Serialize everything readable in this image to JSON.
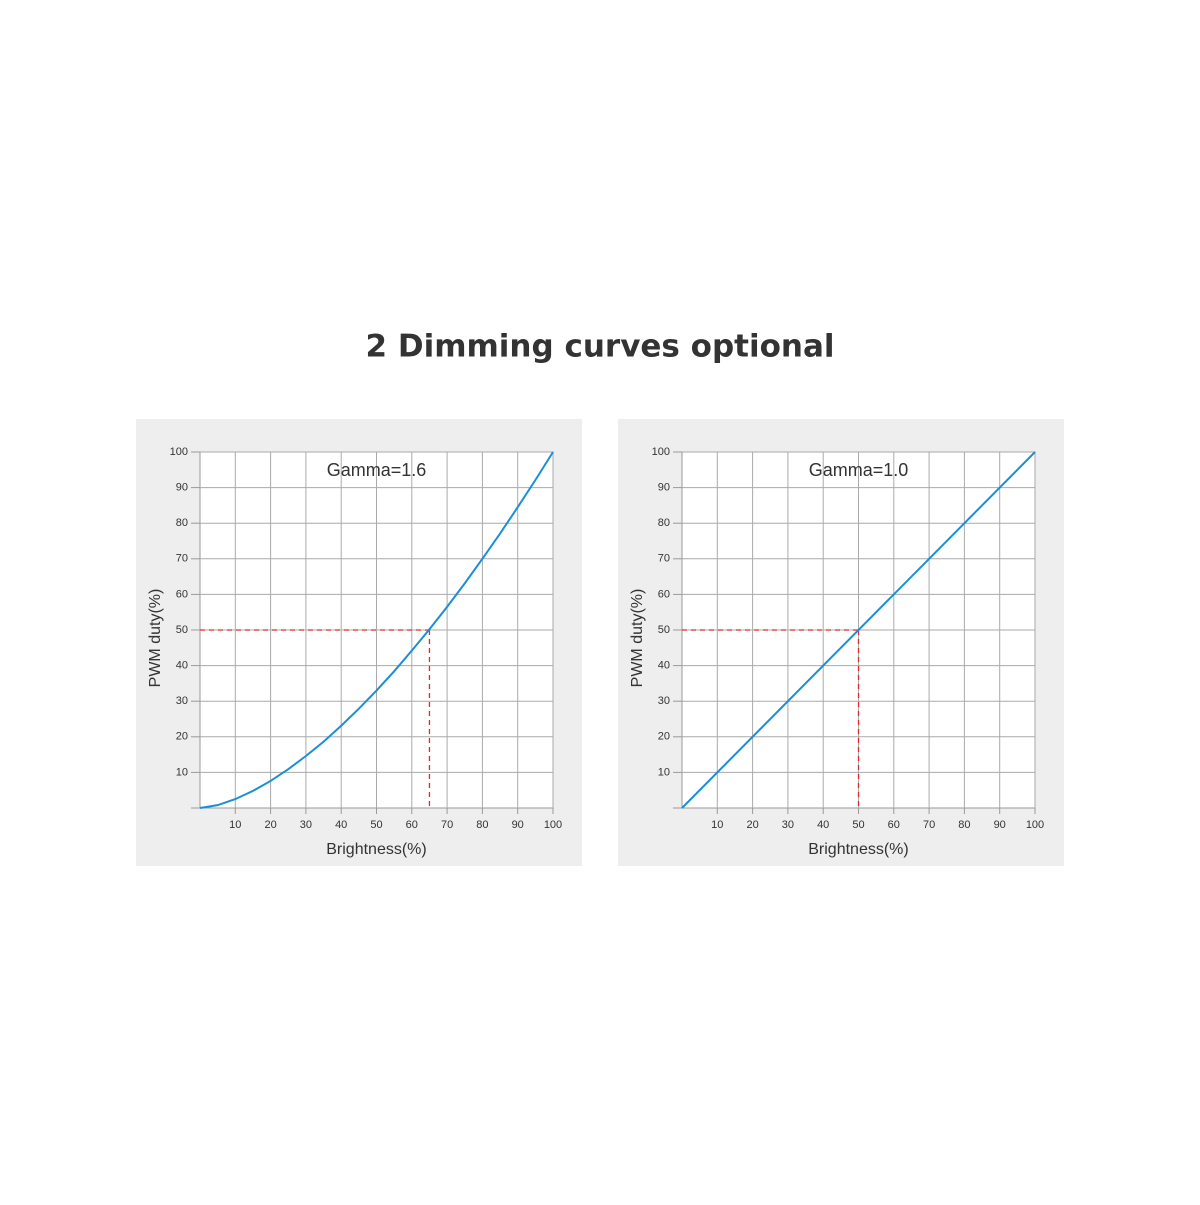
{
  "title": "2 Dimming curves optional",
  "chart_data": [
    {
      "type": "line",
      "annotation": "Gamma=1.6",
      "x_label": "Brightness(%)",
      "y_label": "PWM duty(%)",
      "x": [
        0,
        5,
        10,
        15,
        20,
        25,
        30,
        35,
        40,
        45,
        50,
        55,
        60,
        65,
        70,
        75,
        80,
        85,
        90,
        95,
        100
      ],
      "values": [
        0,
        0.8,
        2.5,
        4.8,
        7.6,
        10.9,
        14.6,
        18.6,
        23.1,
        27.9,
        33.0,
        38.4,
        44.2,
        50.2,
        56.5,
        63.1,
        70.0,
        77.1,
        84.5,
        92.1,
        100
      ],
      "color": "#1a8fd6",
      "xlim": [
        0,
        100
      ],
      "ylim": [
        0,
        100
      ],
      "xticks": [
        10,
        20,
        30,
        40,
        50,
        60,
        70,
        80,
        90,
        100
      ],
      "yticks": [
        10,
        20,
        30,
        40,
        50,
        60,
        70,
        80,
        90,
        100
      ],
      "grid": true,
      "reference": {
        "x": 65,
        "y": 50,
        "color": "#e0282e"
      }
    },
    {
      "type": "line",
      "annotation": "Gamma=1.0",
      "x_label": "Brightness(%)",
      "y_label": "PWM duty(%)",
      "x": [
        0,
        100
      ],
      "values": [
        0,
        100
      ],
      "color": "#1a8fd6",
      "xlim": [
        0,
        100
      ],
      "ylim": [
        0,
        100
      ],
      "xticks": [
        10,
        20,
        30,
        40,
        50,
        60,
        70,
        80,
        90,
        100
      ],
      "yticks": [
        10,
        20,
        30,
        40,
        50,
        60,
        70,
        80,
        90,
        100
      ],
      "grid": true,
      "reference": {
        "x": 50,
        "y": 50,
        "color": "#e0282e"
      }
    }
  ]
}
